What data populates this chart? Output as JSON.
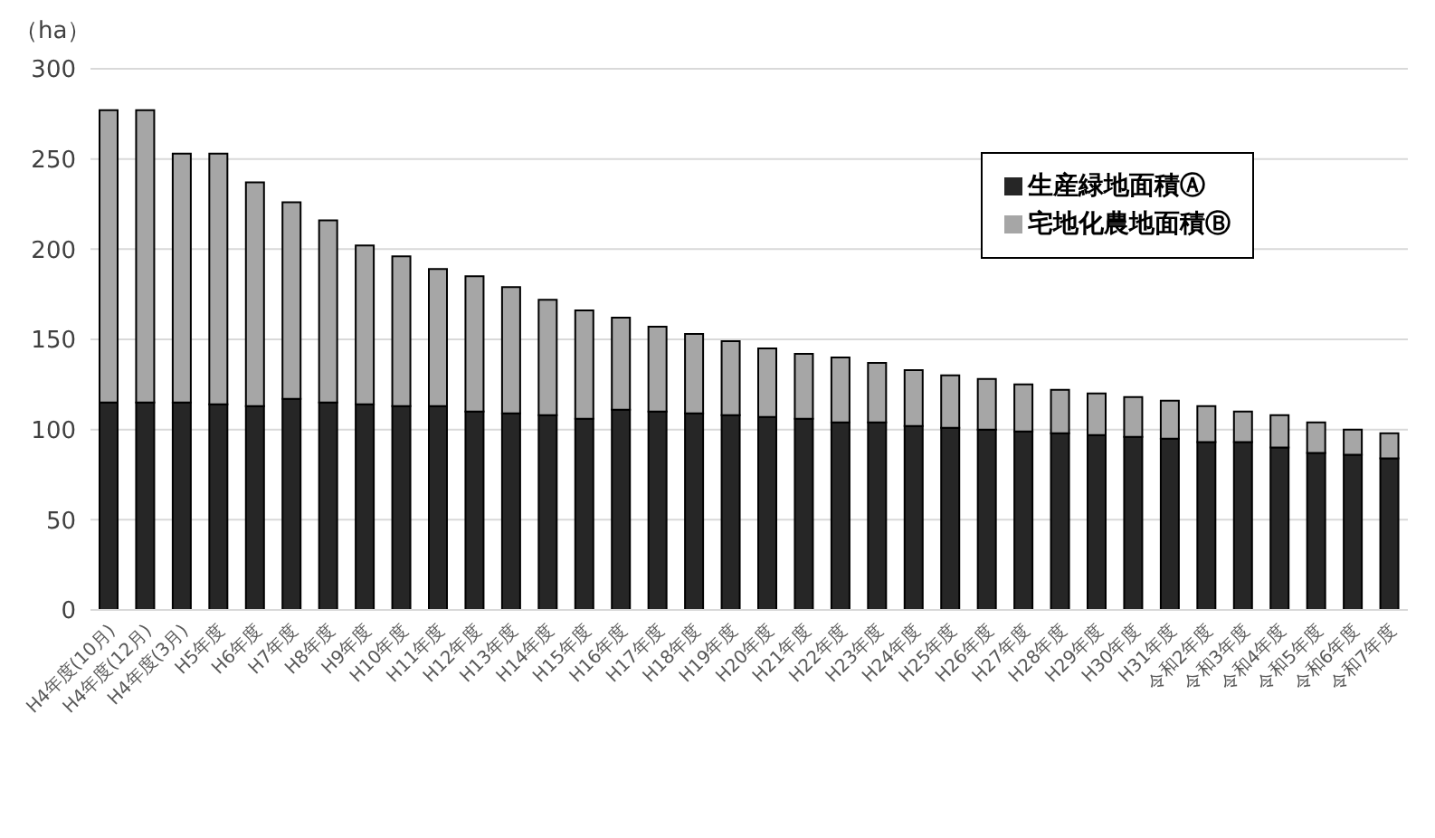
{
  "chart_data": {
    "type": "bar",
    "stacked": true,
    "ylabel": "（ha）",
    "categories": [
      "H4年度(10月)",
      "H4年度(12月)",
      "H4年度(3月)",
      "H5年度",
      "H6年度",
      "H7年度",
      "H8年度",
      "H9年度",
      "H10年度",
      "H11年度",
      "H12年度",
      "H13年度",
      "H14年度",
      "H15年度",
      "H16年度",
      "H17年度",
      "H18年度",
      "H19年度",
      "H20年度",
      "H21年度",
      "H22年度",
      "H23年度",
      "H24年度",
      "H25年度",
      "H26年度",
      "H27年度",
      "H28年度",
      "H29年度",
      "H30年度",
      "H31年度",
      "令和2年度",
      "令和3年度",
      "令和4年度",
      "令和5年度",
      "令和6年度",
      "令和7年度"
    ],
    "series": [
      {
        "name": "生産緑地面積Ⓐ",
        "color": "#262626",
        "values": [
          115,
          115,
          115,
          114,
          113,
          117,
          115,
          114,
          113,
          113,
          110,
          109,
          108,
          106,
          111,
          110,
          109,
          108,
          107,
          106,
          104,
          104,
          102,
          101,
          100,
          99,
          98,
          97,
          96,
          95,
          93,
          93,
          90,
          87,
          86,
          84
        ]
      },
      {
        "name": "宅地化農地面積Ⓑ",
        "color": "#a6a6a6",
        "values": [
          162,
          162,
          138,
          139,
          124,
          109,
          101,
          88,
          83,
          76,
          75,
          70,
          64,
          60,
          51,
          47,
          44,
          41,
          38,
          36,
          36,
          33,
          31,
          29,
          28,
          26,
          24,
          23,
          22,
          21,
          20,
          17,
          18,
          17,
          14,
          14
        ]
      }
    ],
    "ylim": [
      0,
      300
    ],
    "yticks": [
      0,
      50,
      100,
      150,
      200,
      250,
      300
    ],
    "grid": "y",
    "legend": "top right"
  }
}
